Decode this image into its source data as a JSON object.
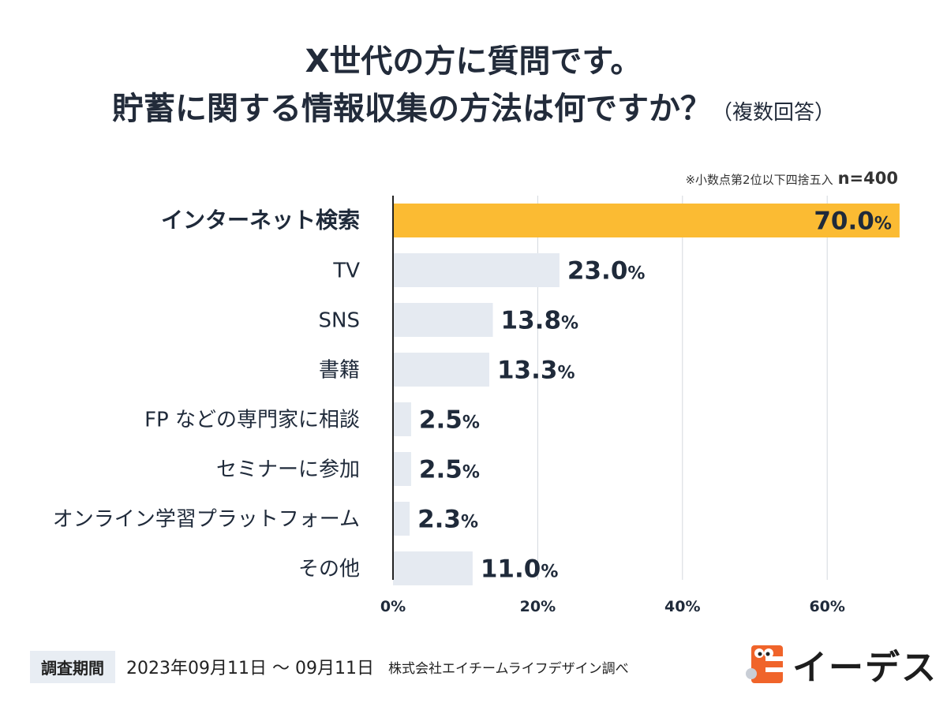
{
  "header": {
    "title_line1": "X世代の方に質問です。",
    "title_line2": "貯蓄に関する情報収集の方法は何ですか？",
    "title_suffix": "（複数回答）"
  },
  "note": {
    "rounding": "※小数点第2位以下四捨五入",
    "n": "n=400"
  },
  "colors": {
    "highlight": "#fbbb33",
    "bar": "#e5eaf1",
    "grid": "#d4d8de",
    "text": "#1f2a3a"
  },
  "chart_data": {
    "type": "bar",
    "orientation": "horizontal",
    "categories": [
      "インターネット検索",
      "TV",
      "SNS",
      "書籍",
      "FP などの専門家に相談",
      "セミナーに参加",
      "オンライン学習プラットフォーム",
      "その他"
    ],
    "values": [
      70.0,
      23.0,
      13.8,
      13.3,
      2.5,
      2.5,
      2.3,
      11.0
    ],
    "value_labels": [
      "70.0",
      "23.0",
      "13.8",
      "13.3",
      "2.5",
      "2.5",
      "2.3",
      "11.0"
    ],
    "unit": "%",
    "highlight_index": 0,
    "x_ticks": [
      0,
      20,
      40,
      60
    ],
    "x_tick_labels": [
      "0%",
      "20%",
      "40%",
      "60%"
    ],
    "xlim": [
      0,
      70
    ],
    "title": "貯蓄に関する情報収集の方法は何ですか？",
    "xlabel": "",
    "ylabel": ""
  },
  "footer": {
    "period_label": "調査期間",
    "period_value": "2023年09月11日 〜 09月11日",
    "credit": "株式会社エイチームライフデザイン調べ",
    "brand": "イーデス"
  }
}
